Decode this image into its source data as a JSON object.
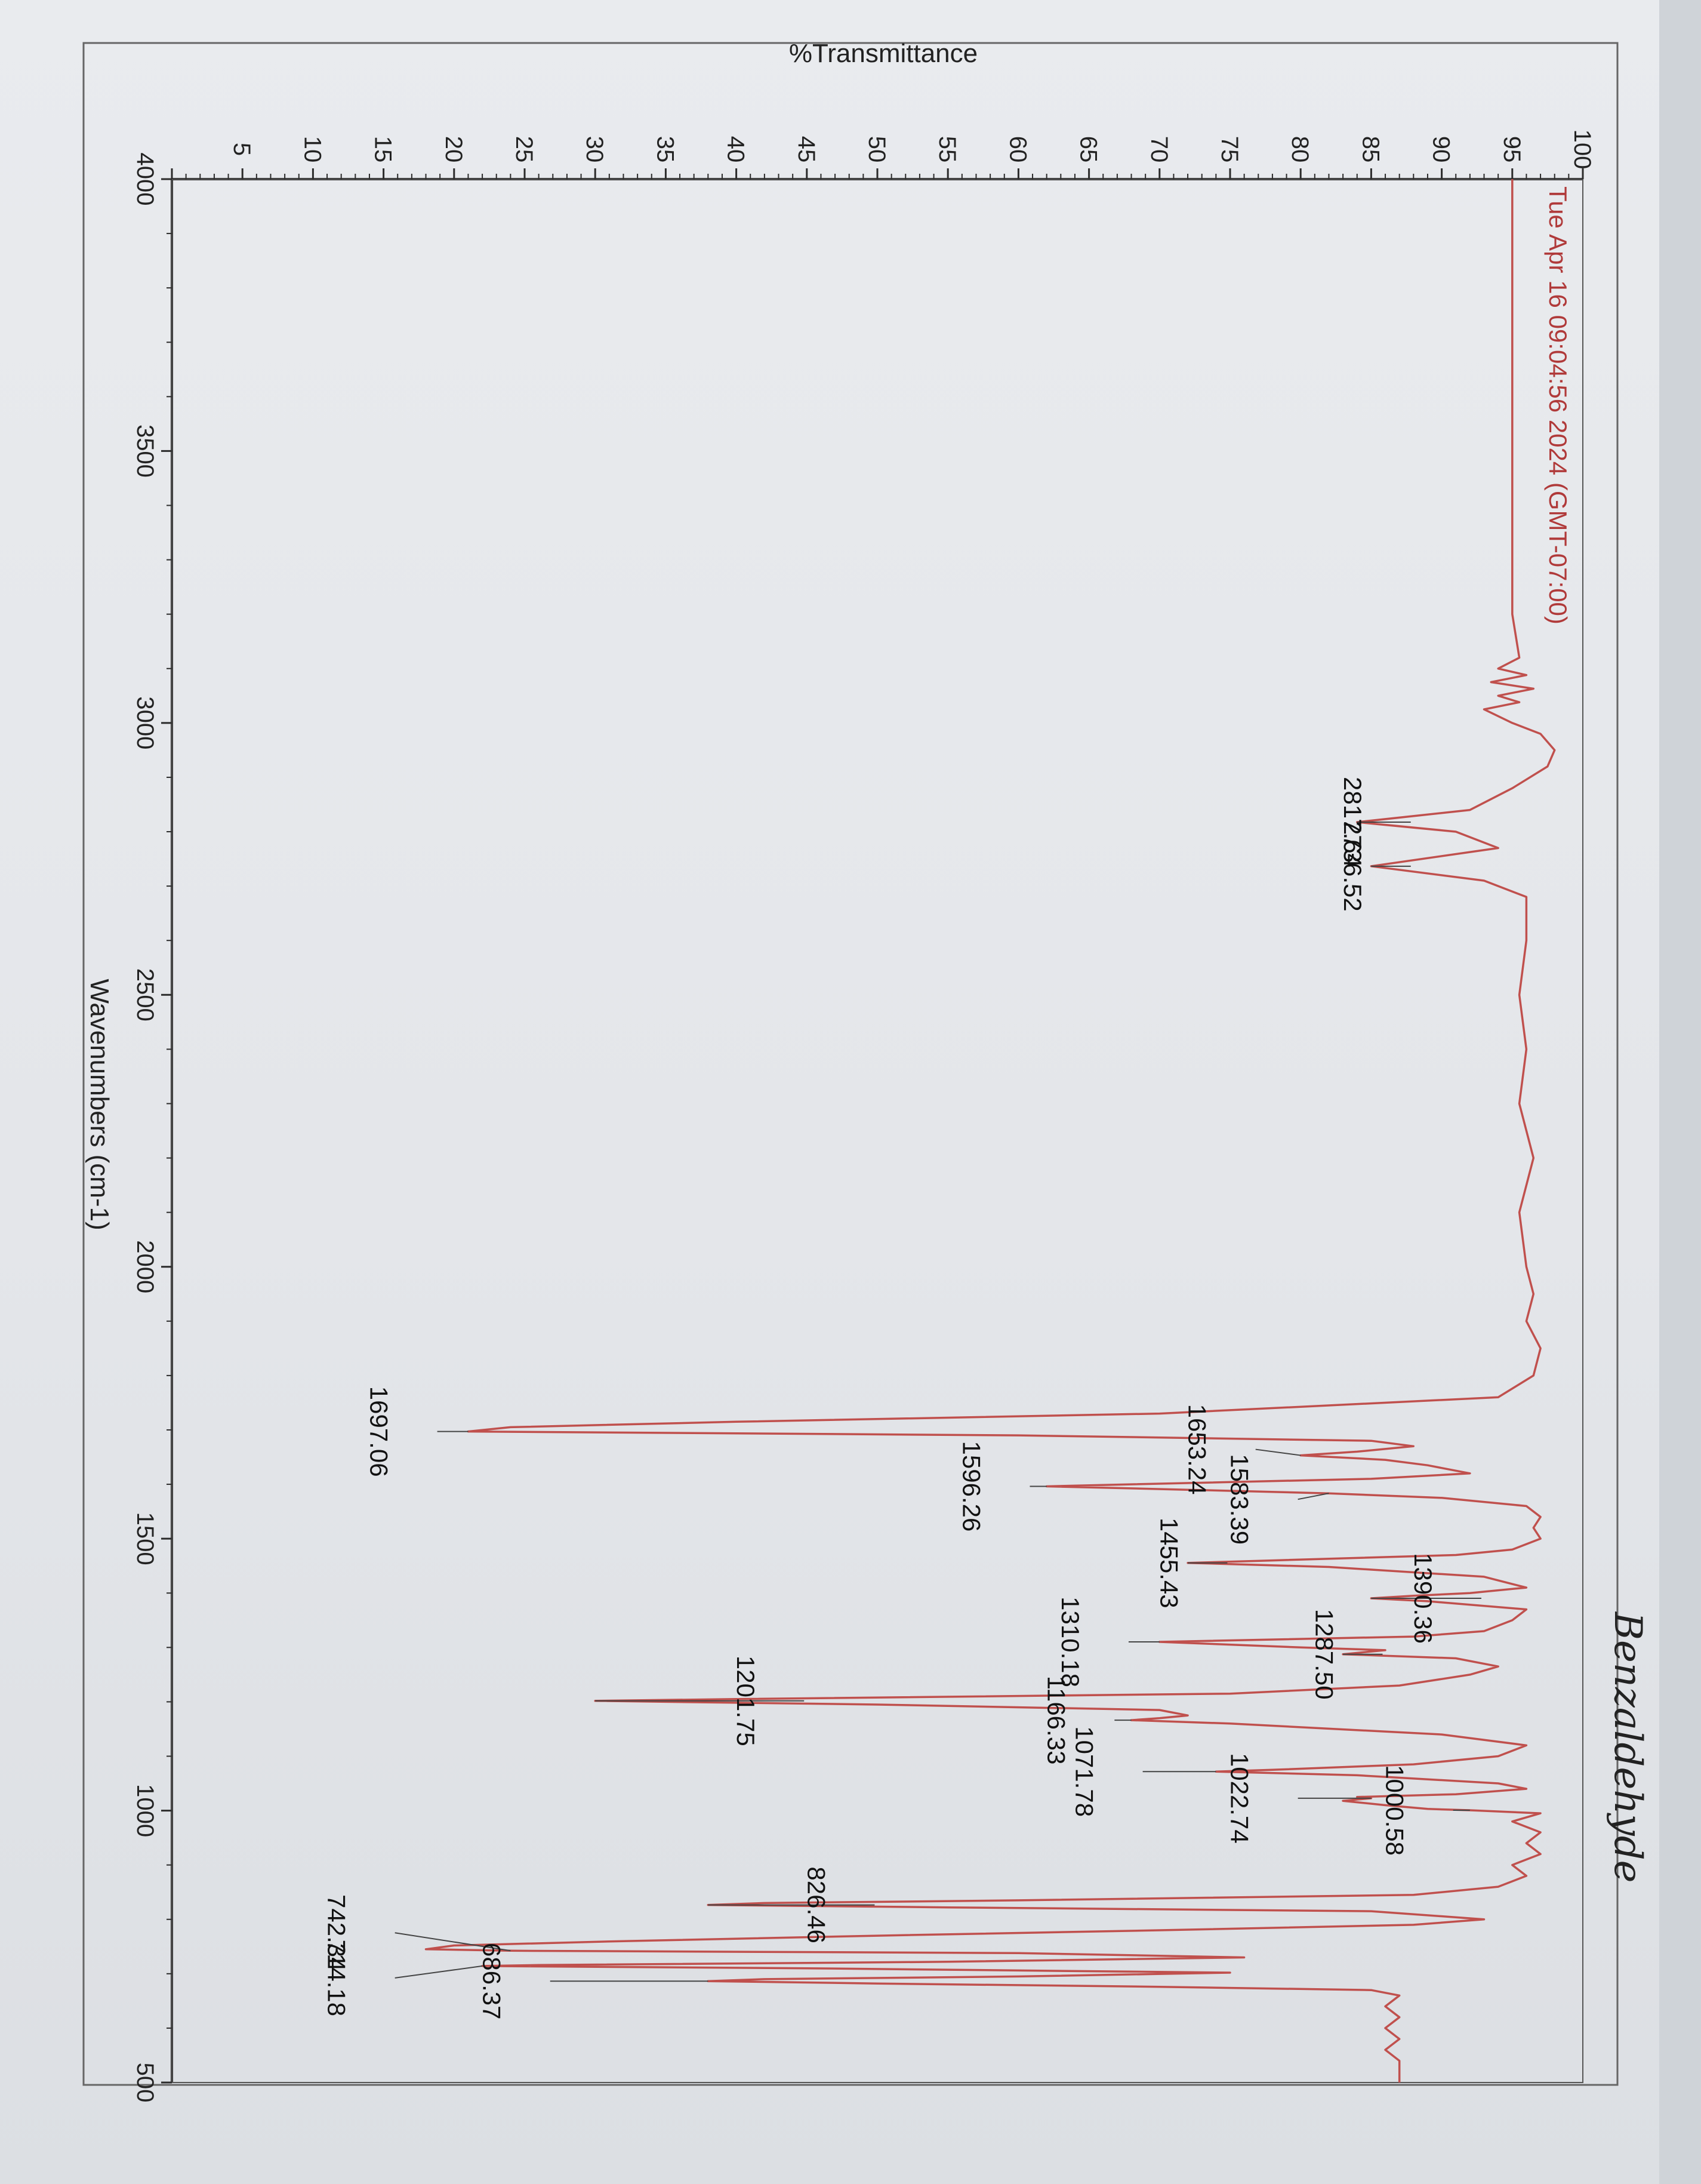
{
  "chart_data": {
    "type": "line",
    "title": "",
    "xlabel": "Wavenumbers (cm-1)",
    "ylabel": "%Transmittance",
    "xlim": [
      4000,
      500
    ],
    "ylim": [
      0,
      100
    ],
    "x_ticks": [
      4000,
      3500,
      3000,
      2500,
      2000,
      1500,
      1000,
      500
    ],
    "y_ticks": [
      5,
      10,
      15,
      20,
      25,
      30,
      35,
      40,
      45,
      50,
      55,
      60,
      65,
      70,
      75,
      80,
      85,
      90,
      95,
      100
    ],
    "x_tick_labels": [
      "4000",
      "3500",
      "3000",
      "2500",
      "2000",
      "1500",
      "1000",
      "500"
    ],
    "y_tick_labels": [
      "5",
      "10",
      "15",
      "20",
      "25",
      "30",
      "35",
      "40",
      "45",
      "50",
      "55",
      "60",
      "65",
      "70",
      "75",
      "80",
      "85",
      "90",
      "95",
      "100"
    ],
    "grid": false,
    "series": [
      {
        "color": "#c0504d",
        "x": [
          4000,
          3600,
          3200,
          3120,
          3100,
          3088,
          3075,
          3063,
          3050,
          3038,
          3025,
          3000,
          2980,
          2950,
          2920,
          2880,
          2840,
          2817.64,
          2800,
          2770,
          2736.52,
          2710,
          2680,
          2600,
          2500,
          2400,
          2300,
          2200,
          2100,
          2000,
          1950,
          1900,
          1850,
          1800,
          1760,
          1730,
          1715,
          1705,
          1697.06,
          1690,
          1680,
          1670,
          1660,
          1653.24,
          1645,
          1635,
          1620,
          1610,
          1600,
          1596.26,
          1590,
          1583.39,
          1575,
          1560,
          1540,
          1520,
          1500,
          1480,
          1470,
          1460,
          1455.43,
          1448,
          1430,
          1410,
          1400,
          1395,
          1390.36,
          1385,
          1370,
          1350,
          1330,
          1320,
          1310.18,
          1300,
          1295,
          1287.5,
          1280,
          1265,
          1250,
          1230,
          1215,
          1205,
          1201.75,
          1195,
          1185,
          1175,
          1170,
          1166.33,
          1160,
          1140,
          1120,
          1100,
          1085,
          1075,
          1071.78,
          1065,
          1050,
          1040,
          1030,
          1025,
          1022.74,
          1018,
          1010,
          1003,
          1000.58,
          995,
          980,
          960,
          940,
          920,
          900,
          880,
          860,
          845,
          835,
          830,
          826.46,
          822,
          815,
          800,
          790,
          780,
          770,
          760,
          752,
          745,
          742.34,
          738,
          730,
          722,
          716,
          714.18,
          710,
          702,
          695,
          690,
          686.37,
          682,
          676,
          670,
          660,
          640,
          620,
          600,
          580,
          560,
          540,
          520,
          500
        ],
        "y": [
          95,
          95,
          95,
          95.5,
          94,
          96,
          93.5,
          96.5,
          94,
          95.5,
          93,
          95,
          97,
          98,
          97.5,
          95,
          92,
          84,
          91,
          94,
          85,
          93,
          96,
          96,
          95.5,
          96,
          95.5,
          96.5,
          95.5,
          96,
          96.5,
          96,
          97,
          96.5,
          94,
          70,
          40,
          24,
          21,
          60,
          85,
          88,
          84,
          80,
          86,
          89,
          92,
          85,
          68,
          62,
          72,
          82,
          90,
          96,
          97,
          96.5,
          97,
          95,
          91,
          78,
          72,
          82,
          93,
          96,
          92,
          88,
          85,
          89,
          96,
          95,
          93,
          88,
          70,
          80,
          86,
          83,
          91,
          94,
          92,
          87,
          75,
          40,
          30,
          50,
          70,
          72,
          70,
          68,
          75,
          90,
          96,
          94,
          88,
          78,
          74,
          84,
          94,
          96,
          91,
          84,
          85,
          83,
          86,
          89,
          92,
          97,
          95,
          97,
          96,
          97,
          95,
          96,
          94,
          88,
          60,
          42,
          38,
          55,
          85,
          93,
          88,
          70,
          50,
          32,
          20,
          18,
          24,
          60,
          76,
          55,
          26,
          22,
          45,
          75,
          60,
          42,
          38,
          50,
          70,
          85,
          87,
          86,
          87,
          86,
          87,
          86,
          87,
          87,
          87
        ]
      }
    ],
    "peak_labels": [
      {
        "x": 2817.64,
        "label": "2817.64"
      },
      {
        "x": 2736.52,
        "label": "2736.52"
      },
      {
        "x": 1697.06,
        "label": "1697.06"
      },
      {
        "x": 1653.24,
        "label": "1653.24"
      },
      {
        "x": 1596.26,
        "label": "1596.26"
      },
      {
        "x": 1583.39,
        "label": "1583.39"
      },
      {
        "x": 1455.43,
        "label": "1455.43"
      },
      {
        "x": 1390.36,
        "label": "1390.36"
      },
      {
        "x": 1310.18,
        "label": "1310.18"
      },
      {
        "x": 1287.5,
        "label": "1287.50"
      },
      {
        "x": 1201.75,
        "label": "1201.75"
      },
      {
        "x": 1166.33,
        "label": "1166.33"
      },
      {
        "x": 1071.78,
        "label": "1071.78"
      },
      {
        "x": 1022.74,
        "label": "1022.74"
      },
      {
        "x": 1000.58,
        "label": "1000.58"
      },
      {
        "x": 826.46,
        "label": "826.46"
      },
      {
        "x": 742.34,
        "label": "742.34"
      },
      {
        "x": 714.18,
        "label": "714.18"
      },
      {
        "x": 686.37,
        "label": "686.37"
      }
    ],
    "timestamp": "Tue Apr 16 09:04:56 2024 (GMT-07:00)",
    "handwritten_note": "Benzaldehyde"
  },
  "colors": {
    "spectrum": "#c0504d",
    "axis": "#2b2b2b",
    "timestamp": "#b03a3a",
    "leader": "#444444"
  }
}
